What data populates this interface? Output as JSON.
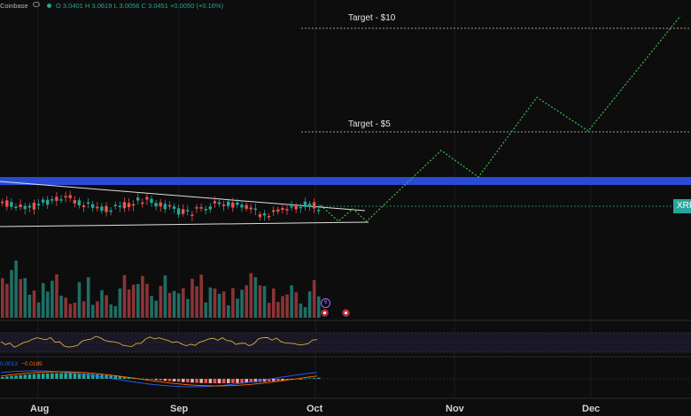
{
  "header": {
    "exchange": "Coinbase",
    "open": "O 3.0401",
    "high": "H 3.0619",
    "low": "L 3.0056",
    "close": "C 3.0451",
    "change": "+0.0050 (+0.16%)"
  },
  "annotations": {
    "target_10": "Target - $10",
    "target_5": "Target - $5"
  },
  "price_tag": "XRP",
  "macd_values": {
    "v1": "0.0013",
    "v2": "−0.0185"
  },
  "x_axis": [
    "Aug",
    "Sep",
    "Oct",
    "Nov",
    "Dec"
  ],
  "colors": {
    "up": "#26a69a",
    "down": "#ef5350",
    "zone": "#2a4bd7",
    "projection": "#3fb950"
  }
}
